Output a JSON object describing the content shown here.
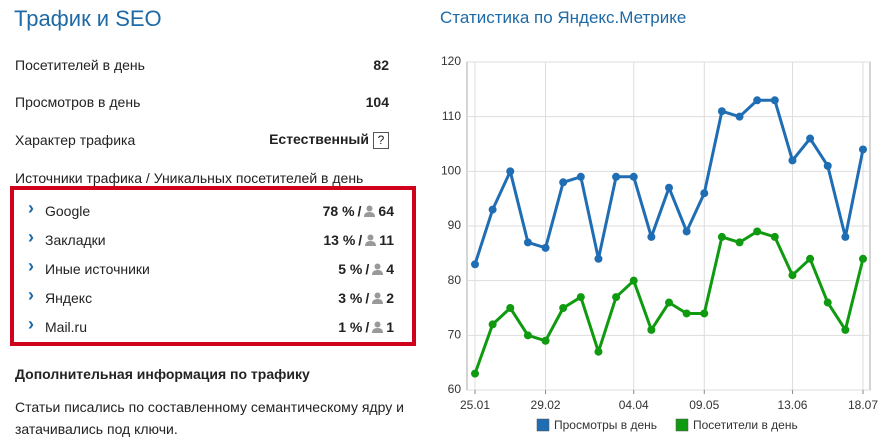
{
  "panel": {
    "title": "Трафик и SEO",
    "rows": [
      {
        "label": "Посетителей в день",
        "value": "82"
      },
      {
        "label": "Просмотров в день",
        "value": "104"
      },
      {
        "label": "Характер трафика",
        "value": "Естественный",
        "help": "?"
      }
    ],
    "sources_header": "Источники трафика / Уникальных посетителей в день",
    "sources": [
      {
        "name": "Google",
        "share": "78 %",
        "sep": "/",
        "count": "64"
      },
      {
        "name": "Закладки",
        "share": "13 %",
        "sep": "/",
        "count": "11"
      },
      {
        "name": "Иные источники",
        "share": "5 %",
        "sep": "/",
        "count": "4"
      },
      {
        "name": "Яндекс",
        "share": "3 %",
        "sep": "/",
        "count": "2"
      },
      {
        "name": "Mail.ru",
        "share": "1 %",
        "sep": "/",
        "count": "1"
      }
    ],
    "extra_title": "Дополнительная информация по трафику",
    "extra_text": "Статьи писались по составленному семантическому ядру и затачивались под ключи."
  },
  "chart_data": {
    "type": "line",
    "title": "Статистика по Яндекс.Метрике",
    "categories": [
      "25.01",
      null,
      null,
      null,
      "29.02",
      null,
      null,
      null,
      null,
      "04.04",
      null,
      null,
      null,
      "09.05",
      null,
      null,
      null,
      null,
      "13.06",
      null,
      null,
      null,
      "18.07"
    ],
    "series": [
      {
        "name": "Просмотры в день",
        "color": "#1f6db3",
        "values": [
          83,
          93,
          100,
          87,
          86,
          98,
          99,
          84,
          99,
          99,
          88,
          97,
          89,
          96,
          111,
          110,
          113,
          113,
          102,
          106,
          101,
          88,
          104
        ]
      },
      {
        "name": "Посетители в день",
        "color": "#0f9a0f",
        "values": [
          63,
          72,
          75,
          70,
          69,
          75,
          77,
          67,
          77,
          80,
          71,
          76,
          74,
          74,
          88,
          87,
          89,
          88,
          81,
          84,
          76,
          71,
          84
        ]
      }
    ],
    "ylim": [
      60,
      120
    ],
    "yticks": [
      60,
      70,
      80,
      90,
      100,
      110,
      120
    ],
    "grid": true,
    "legend": "bottom"
  }
}
